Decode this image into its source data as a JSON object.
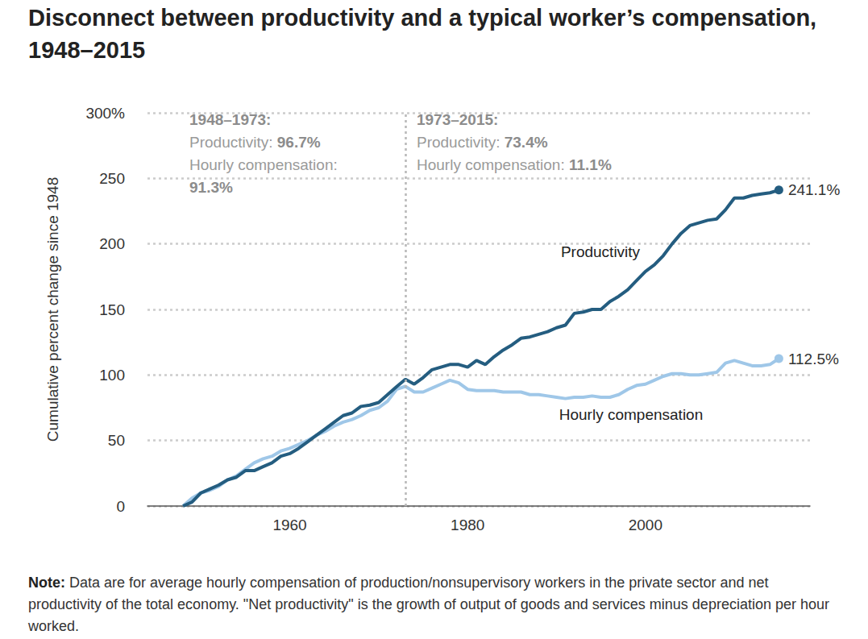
{
  "chart_data": {
    "type": "line",
    "title": "Disconnect between productivity and a typical worker’s compensation, 1948–2015",
    "y_label": "Cumulative percent change since 1948",
    "x": [
      1948,
      1949,
      1950,
      1951,
      1952,
      1953,
      1954,
      1955,
      1956,
      1957,
      1958,
      1959,
      1960,
      1961,
      1962,
      1963,
      1964,
      1965,
      1966,
      1967,
      1968,
      1969,
      1970,
      1971,
      1972,
      1973,
      1974,
      1975,
      1976,
      1977,
      1978,
      1979,
      1980,
      1981,
      1982,
      1983,
      1984,
      1985,
      1986,
      1987,
      1988,
      1989,
      1990,
      1991,
      1992,
      1993,
      1994,
      1995,
      1996,
      1997,
      1998,
      1999,
      2000,
      2001,
      2002,
      2003,
      2004,
      2005,
      2006,
      2007,
      2008,
      2009,
      2010,
      2011,
      2012,
      2013,
      2014,
      2015
    ],
    "series": [
      {
        "name": "Productivity",
        "color": "#245d80",
        "marker": "circle",
        "values": [
          0,
          3,
          10,
          13,
          16,
          20,
          22,
          27,
          27,
          30,
          33,
          38,
          40,
          44,
          49,
          54,
          59,
          64,
          69,
          71,
          76,
          77,
          79,
          85,
          91,
          96.7,
          93,
          98,
          104,
          106,
          108,
          108,
          106,
          111,
          108,
          114,
          119,
          123,
          128,
          129,
          131,
          133,
          136,
          138,
          147,
          148,
          150,
          150,
          156,
          160,
          165,
          172,
          179,
          184,
          191,
          200,
          208,
          214,
          216,
          218,
          219,
          226,
          235,
          235,
          237,
          238,
          239,
          241.1
        ],
        "value_labels": [
          null,
          null,
          null,
          null,
          null,
          null,
          null,
          null,
          null,
          null,
          null,
          null,
          null,
          null,
          null,
          null,
          null,
          null,
          null,
          null,
          null,
          null,
          null,
          null,
          null,
          null,
          null,
          null,
          null,
          null,
          null,
          null,
          null,
          null,
          null,
          null,
          null,
          null,
          null,
          null,
          null,
          null,
          null,
          null,
          null,
          null,
          null,
          null,
          null,
          null,
          null,
          null,
          null,
          null,
          null,
          null,
          null,
          null,
          null,
          null,
          null,
          null,
          null,
          null,
          null,
          null,
          null,
          "241.1%"
        ]
      },
      {
        "name": "Hourly compensation",
        "color": "#9fc7e8",
        "marker": "circle",
        "values": [
          0,
          6,
          10,
          12,
          15,
          20,
          23,
          28,
          33,
          36,
          38,
          42,
          44,
          47,
          50,
          54,
          57,
          61,
          64,
          66,
          69,
          73,
          75,
          80,
          89,
          91.3,
          87,
          87,
          90,
          93,
          96,
          94,
          89,
          88,
          88,
          88,
          87,
          87,
          87,
          85,
          85,
          84,
          83,
          82,
          83,
          83,
          84,
          83,
          83,
          85,
          89,
          92,
          93,
          96,
          99,
          101,
          101,
          100,
          100,
          101,
          102,
          109,
          111,
          109,
          107,
          107,
          108,
          112.5
        ],
        "value_labels": [
          null,
          null,
          null,
          null,
          null,
          null,
          null,
          null,
          null,
          null,
          null,
          null,
          null,
          null,
          null,
          null,
          null,
          null,
          null,
          null,
          null,
          null,
          null,
          null,
          null,
          null,
          null,
          null,
          null,
          null,
          null,
          null,
          null,
          null,
          null,
          null,
          null,
          null,
          null,
          null,
          null,
          null,
          null,
          null,
          null,
          null,
          null,
          null,
          null,
          null,
          null,
          null,
          null,
          null,
          null,
          null,
          null,
          null,
          null,
          null,
          null,
          null,
          null,
          null,
          null,
          null,
          null,
          "112.5%"
        ]
      }
    ],
    "xlim": [
      1944,
      2018.5
    ],
    "xticks": [
      1960,
      1980,
      2000
    ],
    "ylim": [
      0,
      300
    ],
    "yticks": [
      0,
      50,
      100,
      150,
      200,
      250,
      {
        "value": 300,
        "label": "300%"
      }
    ],
    "grid": true,
    "divider": 1973,
    "annotations": [
      {
        "heading": "1948–1973:",
        "items": [
          {
            "label": "Productivity:",
            "value": "96.7%"
          },
          {
            "label": "Hourly compensation:",
            "value": "91.3%"
          }
        ]
      },
      {
        "heading": "1973–2015:",
        "items": [
          {
            "label": "Productivity:",
            "value": "73.4%"
          },
          {
            "label": "Hourly compensation:",
            "value": "11.1%"
          }
        ]
      }
    ],
    "note": {
      "label": "Note:",
      "text": "Data are for average hourly compensation of production/nonsupervisory workers in the private sector and net productivity of the total economy. \"Net productivity\" is the growth of output of goods and services minus depreciation per hour worked."
    }
  }
}
